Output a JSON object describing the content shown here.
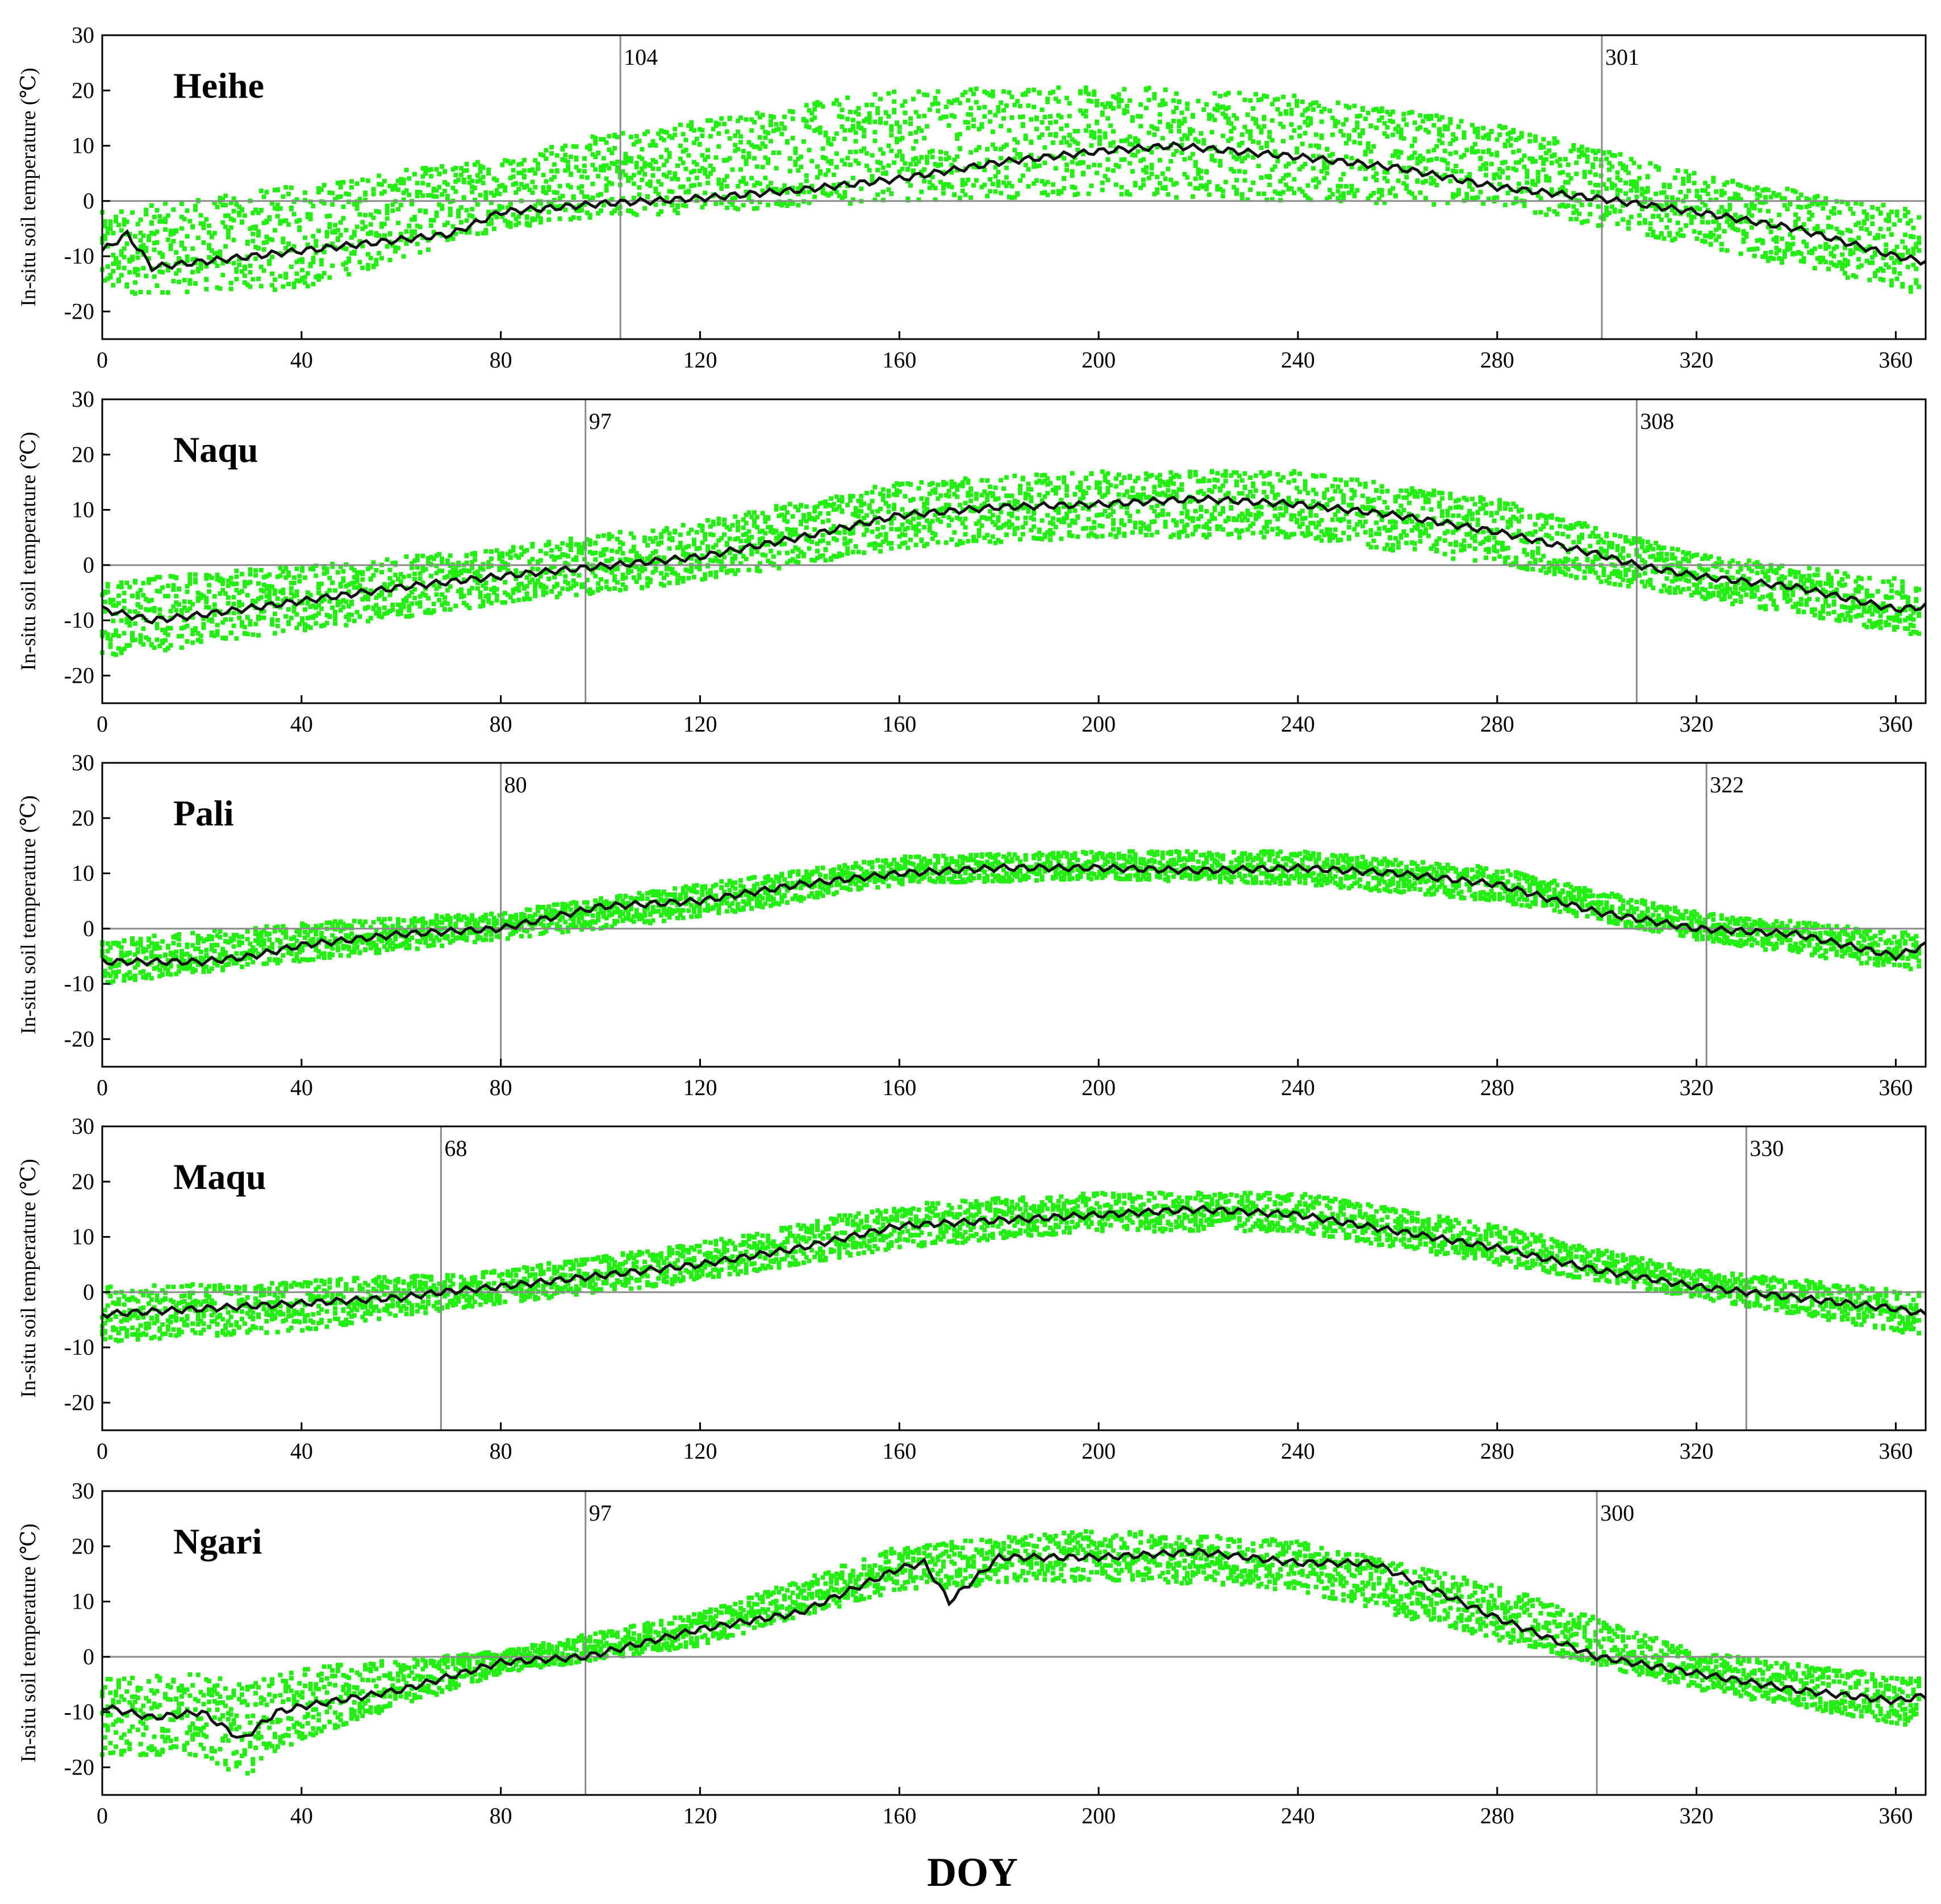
{
  "chart_data": [
    {
      "type": "scatter",
      "title": "Heihe",
      "ylabel": "In-situ soil temperature (℃)",
      "xlim": [
        0,
        366
      ],
      "ylim": [
        -25,
        30
      ],
      "xticks": [
        "0",
        "40",
        "80",
        "120",
        "160",
        "200",
        "240",
        "280",
        "320",
        "360"
      ],
      "yticks": [
        "30",
        "20",
        "10",
        "0",
        "-10",
        "-20"
      ],
      "markers": [
        {
          "doy": 104,
          "label": "104"
        },
        {
          "doy": 301,
          "label": "301"
        }
      ],
      "mean_curve": {
        "x": [
          0,
          5,
          10,
          20,
          40,
          60,
          70,
          80,
          100,
          120,
          140,
          160,
          180,
          200,
          215,
          240,
          260,
          280,
          300,
          320,
          340,
          360,
          366
        ],
        "y": [
          -9,
          -6,
          -12,
          -11,
          -9,
          -7,
          -6,
          -2,
          -0.5,
          0.5,
          2,
          4,
          7,
          9,
          10,
          8,
          6,
          2.5,
          0.5,
          -2,
          -5,
          -10,
          -11
        ]
      },
      "spread": {
        "x": [
          0,
          40,
          80,
          100,
          120,
          160,
          200,
          240,
          280,
          320,
          366
        ],
        "high": [
          -2,
          3,
          8,
          12,
          15,
          20,
          21,
          19,
          14,
          5,
          -2
        ],
        "low": [
          -17,
          -16,
          -5,
          -3,
          -2,
          0,
          1,
          0,
          -1,
          -8,
          -17
        ]
      },
      "grid": false
    },
    {
      "type": "scatter",
      "title": "Naqu",
      "ylabel": "In-situ soil temperature (℃)",
      "xlim": [
        0,
        366
      ],
      "ylim": [
        -25,
        30
      ],
      "xticks": [
        "0",
        "40",
        "80",
        "120",
        "160",
        "200",
        "240",
        "280",
        "320",
        "360"
      ],
      "yticks": [
        "30",
        "20",
        "10",
        "0",
        "-10",
        "-20"
      ],
      "markers": [
        {
          "doy": 97,
          "label": "97"
        },
        {
          "doy": 308,
          "label": "308"
        }
      ],
      "mean_curve": {
        "x": [
          0,
          10,
          20,
          40,
          60,
          80,
          97,
          120,
          140,
          160,
          180,
          200,
          220,
          240,
          260,
          280,
          300,
          308,
          320,
          340,
          360,
          366
        ],
        "y": [
          -8,
          -10,
          -9,
          -6.5,
          -4,
          -2,
          -0.5,
          1.5,
          5,
          9,
          10.5,
          11,
          12,
          11,
          9,
          6,
          2,
          0,
          -2,
          -4,
          -8,
          -7.5
        ]
      },
      "spread": {
        "x": [
          0,
          40,
          80,
          120,
          160,
          200,
          240,
          280,
          320,
          366
        ],
        "high": [
          -3,
          0,
          3,
          8,
          15,
          17,
          17,
          12,
          2,
          -3
        ],
        "low": [
          -17,
          -12,
          -7,
          -3,
          3,
          5,
          5,
          0,
          -6,
          -13
        ]
      },
      "grid": false
    },
    {
      "type": "scatter",
      "title": "Pali",
      "ylabel": "In-situ soil temperature (℃)",
      "xlim": [
        0,
        366
      ],
      "ylim": [
        -25,
        30
      ],
      "xticks": [
        "0",
        "40",
        "80",
        "120",
        "160",
        "200",
        "240",
        "280",
        "320",
        "360"
      ],
      "yticks": [
        "30",
        "20",
        "10",
        "0",
        "-10",
        "-20"
      ],
      "markers": [
        {
          "doy": 80,
          "label": "80"
        },
        {
          "doy": 322,
          "label": "322"
        }
      ],
      "mean_curve": {
        "x": [
          0,
          10,
          20,
          30,
          40,
          60,
          80,
          90,
          100,
          120,
          140,
          160,
          180,
          200,
          220,
          240,
          260,
          280,
          300,
          320,
          340,
          360,
          366
        ],
        "y": [
          -6,
          -6,
          -6,
          -5,
          -3,
          -1,
          0,
          2,
          4,
          5,
          8,
          10,
          11,
          11,
          10.5,
          11,
          10,
          8,
          3,
          0,
          -1,
          -5,
          -3
        ]
      },
      "spread": {
        "x": [
          0,
          40,
          80,
          120,
          160,
          200,
          240,
          280,
          320,
          366
        ],
        "high": [
          -2,
          1,
          3,
          8,
          13,
          14,
          14,
          11,
          3,
          -1
        ],
        "low": [
          -10,
          -6,
          -2,
          2,
          8,
          9,
          8,
          5,
          -2,
          -8
        ]
      },
      "grid": false
    },
    {
      "type": "scatter",
      "title": "Maqu",
      "ylabel": "In-situ soil temperature (℃)",
      "xlim": [
        0,
        366
      ],
      "ylim": [
        -25,
        30
      ],
      "xticks": [
        "0",
        "40",
        "80",
        "120",
        "160",
        "200",
        "240",
        "280",
        "320",
        "360"
      ],
      "yticks": [
        "30",
        "20",
        "10",
        "0",
        "-10",
        "-20"
      ],
      "markers": [
        {
          "doy": 68,
          "label": "68"
        },
        {
          "doy": 330,
          "label": "330"
        }
      ],
      "mean_curve": {
        "x": [
          0,
          20,
          40,
          60,
          68,
          80,
          100,
          120,
          140,
          160,
          180,
          200,
          220,
          240,
          260,
          280,
          300,
          320,
          330,
          340,
          360,
          366
        ],
        "y": [
          -4,
          -3,
          -2,
          -1,
          0,
          1,
          3,
          5,
          8,
          12,
          13,
          14,
          15,
          14,
          11,
          8,
          4,
          1,
          0,
          -1,
          -3,
          -4
        ]
      },
      "spread": {
        "x": [
          0,
          40,
          80,
          120,
          160,
          200,
          240,
          280,
          320,
          366
        ],
        "high": [
          1,
          2,
          4,
          9,
          16,
          18,
          18,
          12,
          4,
          0
        ],
        "low": [
          -9,
          -7,
          -2,
          2,
          8,
          11,
          11,
          5,
          -1,
          -8
        ]
      },
      "grid": false
    },
    {
      "type": "scatter",
      "title": "Ngari",
      "ylabel": "In-situ soil temperature (℃)",
      "xlim": [
        0,
        366
      ],
      "ylim": [
        -25,
        30
      ],
      "xticks": [
        "0",
        "40",
        "80",
        "120",
        "160",
        "200",
        "240",
        "280",
        "320",
        "360"
      ],
      "yticks": [
        "30",
        "20",
        "10",
        "0",
        "-10",
        "-20"
      ],
      "markers": [
        {
          "doy": 97,
          "label": "97"
        },
        {
          "doy": 300,
          "label": "300"
        }
      ],
      "mean_curve": {
        "x": [
          0,
          10,
          20,
          28,
          35,
          40,
          60,
          80,
          97,
          120,
          140,
          160,
          165,
          170,
          180,
          200,
          220,
          240,
          255,
          270,
          280,
          300,
          320,
          340,
          360,
          366
        ],
        "y": [
          -9,
          -11,
          -10,
          -15,
          -10,
          -9,
          -6,
          -1,
          0,
          5,
          8,
          16,
          17,
          10,
          18,
          18,
          19,
          17,
          17,
          11,
          7,
          0,
          -3,
          -6,
          -8,
          -7
        ]
      },
      "spread": {
        "x": [
          0,
          20,
          28,
          40,
          80,
          120,
          160,
          200,
          240,
          280,
          320,
          366
        ],
        "high": [
          -4,
          -3,
          -5,
          -2,
          1,
          8,
          20,
          23,
          21,
          13,
          1,
          -4
        ],
        "low": [
          -18,
          -18,
          -22,
          -15,
          -3,
          2,
          12,
          14,
          12,
          3,
          -6,
          -13
        ]
      },
      "grid": false
    }
  ],
  "xlabel": "DOY"
}
